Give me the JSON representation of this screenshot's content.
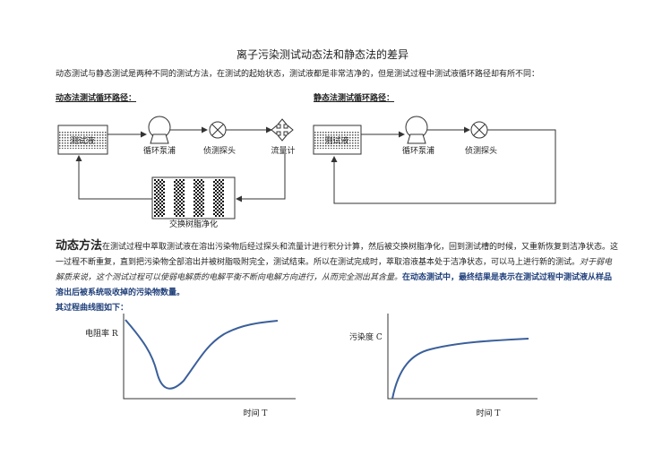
{
  "title": "离子污染测试动态法和静态法的差异",
  "intro": "动态测试与静态测试是两种不同的测试方法，在测试的起始状态，测试液都是非常洁净的，但是测试过程中测试液循环路径却有所不同：",
  "dynamic_path": {
    "heading": "动态法测试循环路径：",
    "tank": "测试液",
    "pump": "循环泵浦",
    "probe": "侦测探头",
    "flow": "流量计",
    "resin": "交换树脂净化"
  },
  "static_path": {
    "heading": "静态法测试循环路径：",
    "tank": "测试液",
    "pump": "循环泵浦",
    "probe": "侦测探头"
  },
  "section": {
    "heading": "动态方法",
    "text": "在测试过程中萃取测试液在溶出污染物后经过探头和流量计进行积分计算，然后被交换树脂净化，回到测试槽的时候，又重新恢复到洁净状态。这一过程不断重复，直到把污染物全部溶出并被树脂吸附完全，测试结束。所以在测试完成时，萃取溶液基本处于洁净状态，可以马上进行新的测试。",
    "italic": "对于弱电解质来说，这个测试过程可以使弱电解质的电解平衡不断向电解方向进行，从而完全测出其含量。",
    "bold": "在动态测试中，最终结果是表示在测试过程中测试液从样品溶出后被系统吸收掉的污染物数量。",
    "curve_intro": "其过程曲线图如下："
  },
  "graphs": [
    {
      "y_label": "电阻率 R",
      "x_label": "时间 T"
    },
    {
      "y_label": "污染度 C",
      "x_label": "时间 T"
    }
  ]
}
